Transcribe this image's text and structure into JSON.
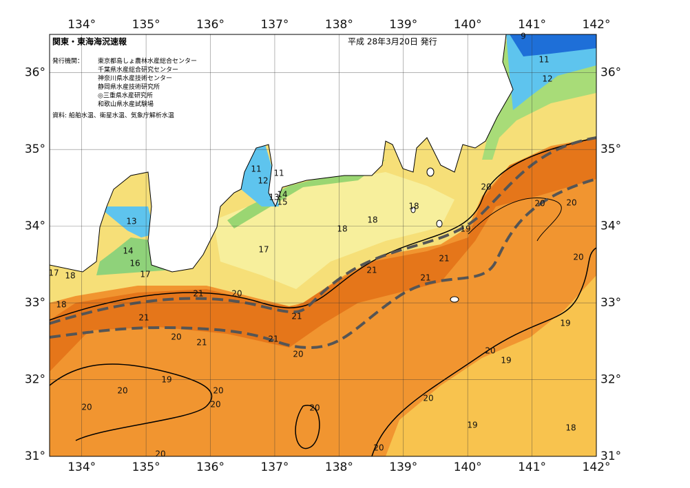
{
  "header": {
    "title": "関東・東海海況速報",
    "issued": "平成 28年3月20日 発行"
  },
  "issuers": {
    "label": "発行機関：",
    "organizations": [
      "東京都島しょ農林水産総合センター",
      "千葉県水産総合研究センター",
      "神奈川県水産技術センター",
      "静岡県水産技術研究所",
      "◎三重県水産研究所",
      "和歌山県水産試験場"
    ]
  },
  "source": "資料: 船舶水温、衛星水温、気象庁解析水温",
  "map": {
    "longitude_ticks": [
      {
        "value": 134,
        "label": "134°"
      },
      {
        "value": 135,
        "label": "135°"
      },
      {
        "value": 136,
        "label": "136°"
      },
      {
        "value": 137,
        "label": "137°"
      },
      {
        "value": 138,
        "label": "138°"
      },
      {
        "value": 139,
        "label": "139°"
      },
      {
        "value": 140,
        "label": "140°"
      },
      {
        "value": 141,
        "label": "141°"
      },
      {
        "value": 142,
        "label": "142°"
      }
    ],
    "latitude_ticks": [
      {
        "value": 31,
        "label": "31°"
      },
      {
        "value": 32,
        "label": "32°"
      },
      {
        "value": 33,
        "label": "33°"
      },
      {
        "value": 34,
        "label": "34°"
      },
      {
        "value": 35,
        "label": "35°"
      },
      {
        "value": 36,
        "label": "36°"
      }
    ],
    "contour_labels": [
      9,
      11,
      12,
      11,
      11,
      12,
      13,
      14,
      15,
      13,
      14,
      16,
      17,
      17,
      18,
      18,
      21,
      20,
      17,
      18,
      18,
      18,
      20,
      19,
      20,
      20,
      20,
      21,
      21,
      21,
      21,
      21,
      20,
      21,
      21,
      20,
      19,
      20,
      20,
      20,
      20,
      20,
      20,
      20,
      19,
      19,
      19,
      18,
      20,
      20
    ]
  }
}
